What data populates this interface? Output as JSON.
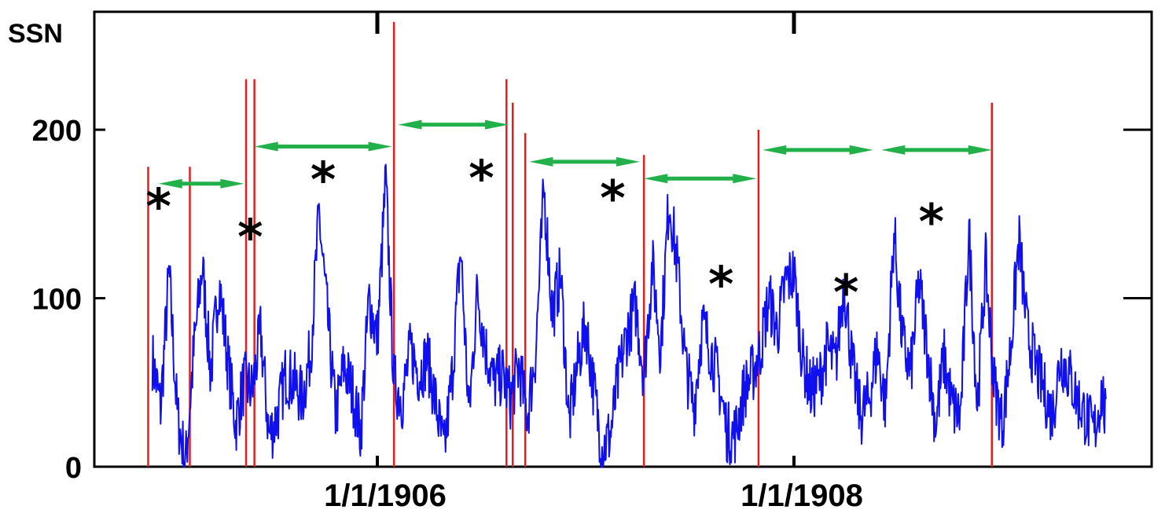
{
  "chart_data": {
    "type": "line",
    "title": "",
    "xlabel": "",
    "ylabel": "SSN",
    "x_unit": "years",
    "xlim": [
      1904.73,
      1909.6
    ],
    "ylim": [
      0,
      270
    ],
    "yticks": [
      0,
      100,
      200
    ],
    "ytick_labels": [
      "0",
      "100",
      "200"
    ],
    "xticks": [
      1906,
      1908
    ],
    "xtick_labels": [
      "1/1/1906",
      "1/1/1908"
    ],
    "grid": false,
    "legend": "none",
    "series": [
      {
        "color": "#1010ee",
        "x": [
          1904.92,
          1904.96,
          1905.0,
          1905.04,
          1905.08,
          1905.12,
          1905.16,
          1905.2,
          1905.24,
          1905.28,
          1905.32,
          1905.36,
          1905.4,
          1905.44,
          1905.48,
          1905.52,
          1905.56,
          1905.6,
          1905.64,
          1905.68,
          1905.72,
          1905.76,
          1905.8,
          1905.84,
          1905.88,
          1905.92,
          1905.96,
          1906.0,
          1906.04,
          1906.08,
          1906.12,
          1906.16,
          1906.2,
          1906.24,
          1906.28,
          1906.32,
          1906.36,
          1906.4,
          1906.44,
          1906.48,
          1906.52,
          1906.56,
          1906.6,
          1906.64,
          1906.68,
          1906.72,
          1906.76,
          1906.8,
          1906.84,
          1906.88,
          1906.92,
          1906.96,
          1907.0,
          1907.04,
          1907.08,
          1907.12,
          1907.16,
          1907.2,
          1907.24,
          1907.28,
          1907.32,
          1907.36,
          1907.4,
          1907.44,
          1907.48,
          1907.52,
          1907.56,
          1907.6,
          1907.64,
          1907.68,
          1907.72,
          1907.76,
          1907.8,
          1907.84,
          1907.88,
          1907.92,
          1907.96,
          1908.0,
          1908.04,
          1908.08,
          1908.12,
          1908.16,
          1908.2,
          1908.24,
          1908.28,
          1908.32,
          1908.36,
          1908.4,
          1908.44,
          1908.48,
          1908.52,
          1908.56,
          1908.6,
          1908.64,
          1908.68,
          1908.72,
          1908.76,
          1908.8,
          1908.84,
          1908.88,
          1908.92,
          1908.96,
          1909.0,
          1909.04,
          1909.08,
          1909.12,
          1909.16,
          1909.2,
          1909.24,
          1909.28,
          1909.32,
          1909.36,
          1909.4,
          1909.44,
          1909.48,
          1909.5
        ],
        "y": [
          64,
          35,
          115,
          30,
          2,
          70,
          120,
          55,
          110,
          65,
          25,
          50,
          45,
          80,
          18,
          30,
          55,
          50,
          40,
          68,
          150,
          90,
          30,
          60,
          45,
          20,
          100,
          75,
          170,
          50,
          40,
          70,
          55,
          65,
          38,
          8,
          55,
          130,
          30,
          105,
          70,
          50,
          55,
          40,
          60,
          30,
          68,
          165,
          90,
          115,
          25,
          60,
          85,
          45,
          10,
          20,
          55,
          80,
          95,
          55,
          120,
          70,
          160,
          120,
          60,
          35,
          85,
          70,
          50,
          20,
          20,
          45,
          55,
          70,
          100,
          80,
          110,
          115,
          65,
          45,
          50,
          70,
          60,
          110,
          60,
          30,
          40,
          70,
          35,
          140,
          75,
          55,
          110,
          70,
          25,
          65,
          35,
          30,
          140,
          35,
          120,
          50,
          25,
          70,
          135,
          80,
          60,
          45,
          30,
          65,
          55,
          40,
          30,
          20,
          45,
          22
        ]
      }
    ],
    "vertical_lines": {
      "color": "#e02020",
      "lines": [
        {
          "x": 1904.9,
          "top": 178
        },
        {
          "x": 1905.1,
          "top": 178
        },
        {
          "x": 1905.37,
          "top": 230
        },
        {
          "x": 1905.41,
          "top": 230
        },
        {
          "x": 1906.08,
          "top": 264
        },
        {
          "x": 1906.62,
          "top": 230
        },
        {
          "x": 1906.65,
          "top": 216
        },
        {
          "x": 1906.71,
          "top": 198
        },
        {
          "x": 1907.28,
          "top": 185
        },
        {
          "x": 1907.83,
          "top": 200
        },
        {
          "x": 1908.95,
          "top": 216
        }
      ]
    },
    "interval_arrows": {
      "color": "#22b04a",
      "arrows": [
        {
          "x1": 1904.95,
          "x2": 1905.36,
          "y": 168
        },
        {
          "x1": 1905.41,
          "x2": 1906.07,
          "y": 190
        },
        {
          "x1": 1906.1,
          "x2": 1906.63,
          "y": 203
        },
        {
          "x1": 1906.73,
          "x2": 1907.26,
          "y": 181
        },
        {
          "x1": 1907.28,
          "x2": 1907.82,
          "y": 171
        },
        {
          "x1": 1907.85,
          "x2": 1908.38,
          "y": 188
        },
        {
          "x1": 1908.42,
          "x2": 1908.95,
          "y": 188
        }
      ]
    },
    "peak_markers": {
      "symbol": "*",
      "points": [
        {
          "x": 1904.95,
          "y": 161
        },
        {
          "x": 1905.39,
          "y": 143
        },
        {
          "x": 1905.74,
          "y": 177
        },
        {
          "x": 1906.5,
          "y": 178
        },
        {
          "x": 1907.13,
          "y": 166
        },
        {
          "x": 1907.65,
          "y": 115
        },
        {
          "x": 1908.25,
          "y": 110
        },
        {
          "x": 1908.66,
          "y": 152
        }
      ]
    }
  }
}
